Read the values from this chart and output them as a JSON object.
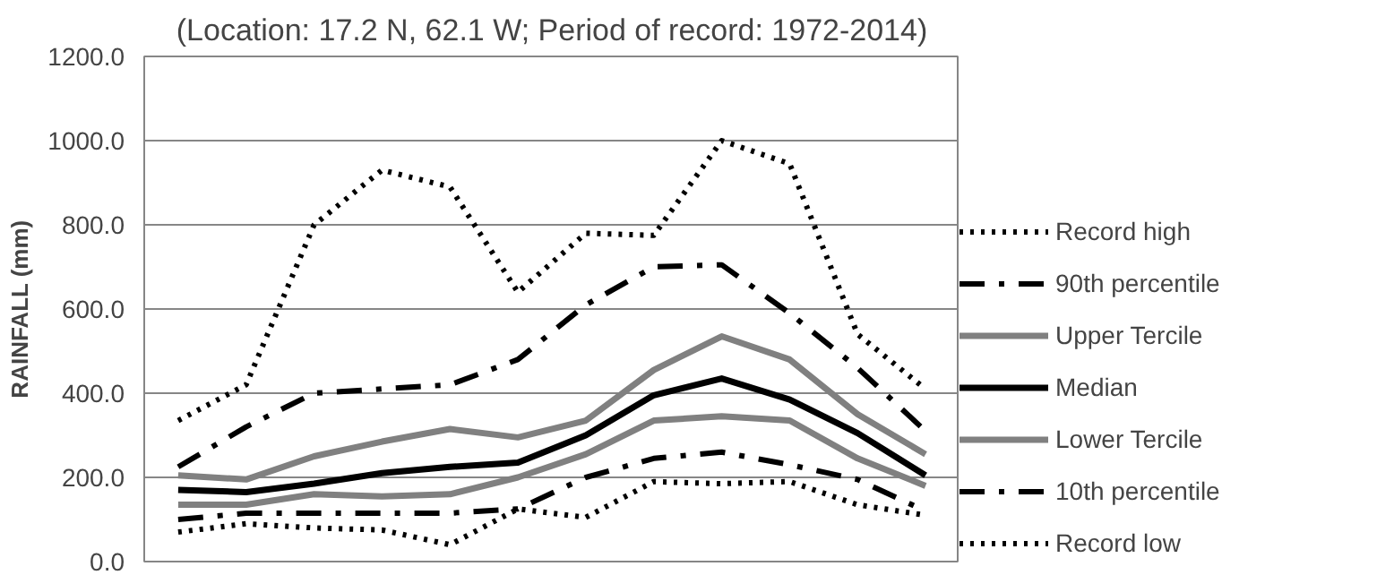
{
  "chart_data": {
    "type": "line",
    "title": "(Location: 17.2 N, 62.1 W; Period of record: 1972-2014)",
    "ylabel": "RAINFALL (mm)",
    "categories": [
      null,
      null,
      null,
      null,
      null,
      null,
      null,
      null,
      null,
      null,
      null,
      null
    ],
    "ylim": [
      0,
      1200
    ],
    "yticks": [
      {
        "value": 0,
        "label": "0.0"
      },
      {
        "value": 200,
        "label": "200.0"
      },
      {
        "value": 400,
        "label": "400.0"
      },
      {
        "value": 600,
        "label": "600.0"
      },
      {
        "value": 800,
        "label": "800.0"
      },
      {
        "value": 1000,
        "label": "1000.0"
      },
      {
        "value": 1200,
        "label": "1200.0"
      }
    ],
    "grid": "y",
    "legend": "right",
    "series": [
      {
        "name": "Record high",
        "color": "#000000",
        "line_style": "dotted",
        "values": [
          335,
          420,
          800,
          930,
          890,
          640,
          780,
          775,
          1000,
          945,
          540,
          410
        ]
      },
      {
        "name": "90th percentile",
        "color": "#000000",
        "line_style": "dashdot",
        "values": [
          225,
          320,
          400,
          410,
          420,
          480,
          610,
          700,
          705,
          590,
          460,
          310
        ]
      },
      {
        "name": "Upper Tercile",
        "color": "#808080",
        "line_style": "solid",
        "values": [
          205,
          195,
          250,
          285,
          315,
          295,
          335,
          455,
          535,
          480,
          350,
          255
        ]
      },
      {
        "name": "Median",
        "color": "#000000",
        "line_style": "solid",
        "values": [
          170,
          165,
          185,
          210,
          225,
          235,
          300,
          395,
          435,
          385,
          305,
          205
        ]
      },
      {
        "name": "Lower Tercile",
        "color": "#808080",
        "line_style": "solid",
        "values": [
          135,
          135,
          160,
          155,
          160,
          200,
          255,
          335,
          345,
          335,
          245,
          180
        ]
      },
      {
        "name": "10th percentile",
        "color": "#000000",
        "line_style": "dashdot",
        "values": [
          100,
          115,
          115,
          115,
          115,
          125,
          200,
          245,
          260,
          230,
          195,
          120
        ]
      },
      {
        "name": "Record low",
        "color": "#000000",
        "line_style": "dotted",
        "values": [
          70,
          90,
          80,
          75,
          40,
          125,
          105,
          190,
          185,
          190,
          135,
          110
        ]
      }
    ]
  }
}
